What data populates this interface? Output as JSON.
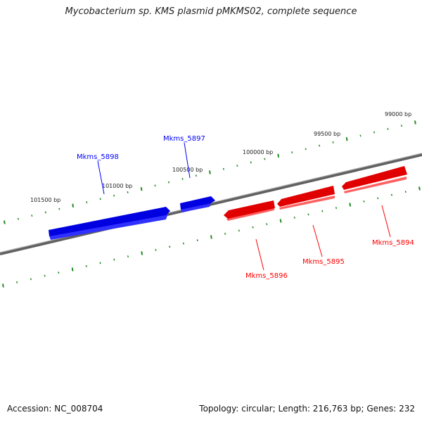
{
  "header": {
    "title": "Mycobacterium sp. KMS plasmid pMKMS02, complete sequence"
  },
  "footer": {
    "accession": "Accession: NC_008704",
    "summary": "Topology: circular; Length: 216,763 bp; Genes: 232"
  },
  "map": {
    "backbone_color": "#808080",
    "tick_color": "#228b22",
    "forward_color": "#0000ff",
    "reverse_color": "#ff0000",
    "tick_labels": [
      "99000 bp",
      "99500 bp",
      "100000 bp",
      "100500 bp",
      "101000 bp",
      "101500 bp"
    ],
    "genes": [
      {
        "name": "Mkms_5898",
        "strand": "forward"
      },
      {
        "name": "Mkms_5897",
        "strand": "forward"
      },
      {
        "name": "Mkms_5896",
        "strand": "reverse"
      },
      {
        "name": "Mkms_5895",
        "strand": "reverse"
      },
      {
        "name": "Mkms_5894",
        "strand": "reverse"
      }
    ]
  }
}
